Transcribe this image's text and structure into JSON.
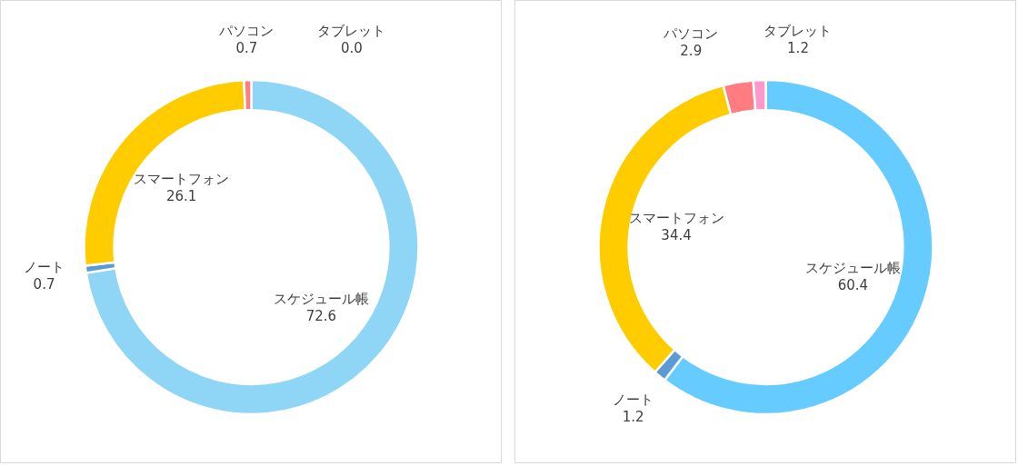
{
  "chart_data": [
    {
      "type": "donut",
      "categories": [
        "スケジュール帳",
        "ノート",
        "スマートフォン",
        "パソコン",
        "タブレット"
      ],
      "values": [
        72.6,
        0.7,
        26.1,
        0.7,
        0.0
      ],
      "colors": [
        "#8fd6f6",
        "#5b9bd5",
        "#ffcc00",
        "#ff7c80",
        "#ff5050"
      ],
      "value_labels": [
        "72.6",
        "0.7",
        "26.1",
        "0.7",
        "0.0"
      ],
      "data_labels": true
    },
    {
      "type": "donut",
      "categories": [
        "スケジュール帳",
        "ノート",
        "スマートフォン",
        "パソコン",
        "タブレット"
      ],
      "values": [
        60.4,
        1.2,
        34.4,
        2.9,
        1.2
      ],
      "colors": [
        "#66ccff",
        "#5b9bd5",
        "#ffcc00",
        "#ff7c80",
        "#ff99cc"
      ],
      "value_labels": [
        "60.4",
        "1.2",
        "34.4",
        "2.9",
        "1.2"
      ],
      "data_labels": true
    }
  ]
}
